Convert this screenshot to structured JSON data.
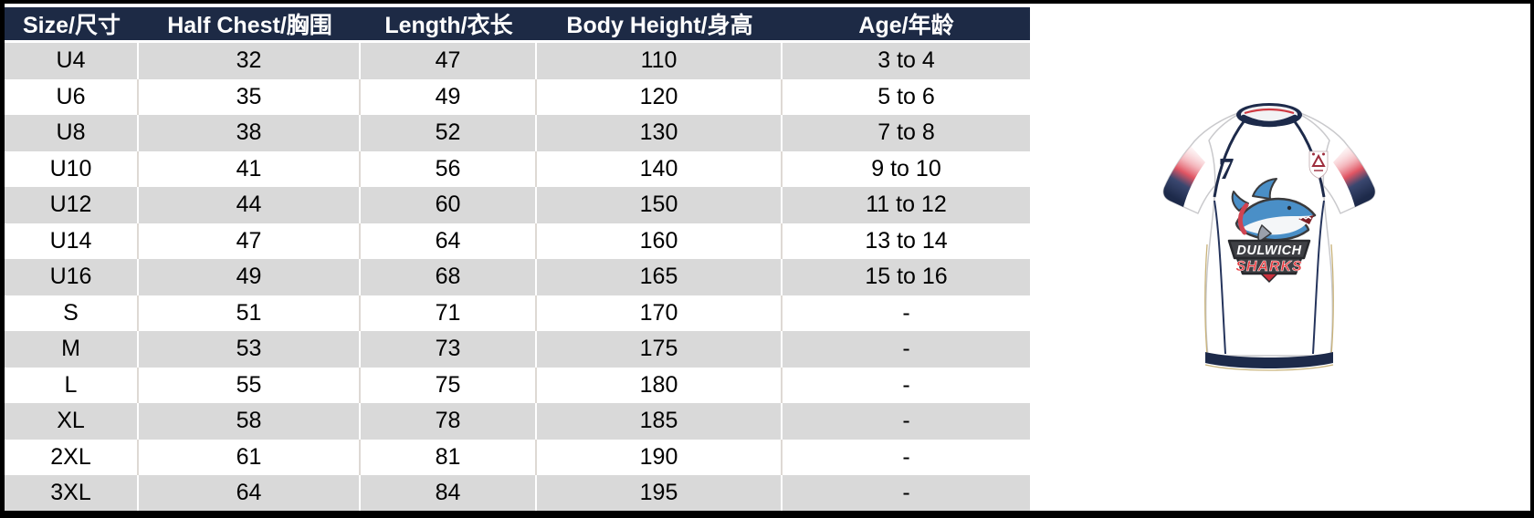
{
  "table": {
    "header": [
      "Size/尺寸",
      "Half Chest/胸围",
      "Length/衣长",
      "Body Height/身高",
      "Age/年龄"
    ],
    "rows": [
      [
        "U4",
        "32",
        "47",
        "110",
        "3 to 4"
      ],
      [
        "U6",
        "35",
        "49",
        "120",
        "5 to 6"
      ],
      [
        "U8",
        "38",
        "52",
        "130",
        "7 to 8"
      ],
      [
        "U10",
        "41",
        "56",
        "140",
        "9 to 10"
      ],
      [
        "U12",
        "44",
        "60",
        "150",
        "11 to 12"
      ],
      [
        "U14",
        "47",
        "64",
        "160",
        "13 to 14"
      ],
      [
        "U16",
        "49",
        "68",
        "165",
        "15 to 16"
      ],
      [
        "S",
        "51",
        "71",
        "170",
        "-"
      ],
      [
        "M",
        "53",
        "73",
        "175",
        "-"
      ],
      [
        "L",
        "55",
        "75",
        "180",
        "-"
      ],
      [
        "XL",
        "58",
        "78",
        "185",
        "-"
      ],
      [
        "2XL",
        "61",
        "81",
        "190",
        "-"
      ],
      [
        "3XL",
        "64",
        "84",
        "195",
        "-"
      ]
    ]
  },
  "jersey": {
    "number": "7",
    "logo_text_top": "DULWICH",
    "logo_text_bottom": "SHARKS"
  },
  "colors": {
    "header_bg": "#1d2a45",
    "row_alt_gray": "#d9d9d9",
    "frame_black": "#000000",
    "jersey_navy": "#1d2a4a",
    "sleeve_red": "#e05563",
    "collar_red": "#cf3a42",
    "shark_blue": "#4a8fc7",
    "logo_red": "#e8393d",
    "banner_charcoal": "#3f4045",
    "trim_tan": "#c9b37a"
  }
}
